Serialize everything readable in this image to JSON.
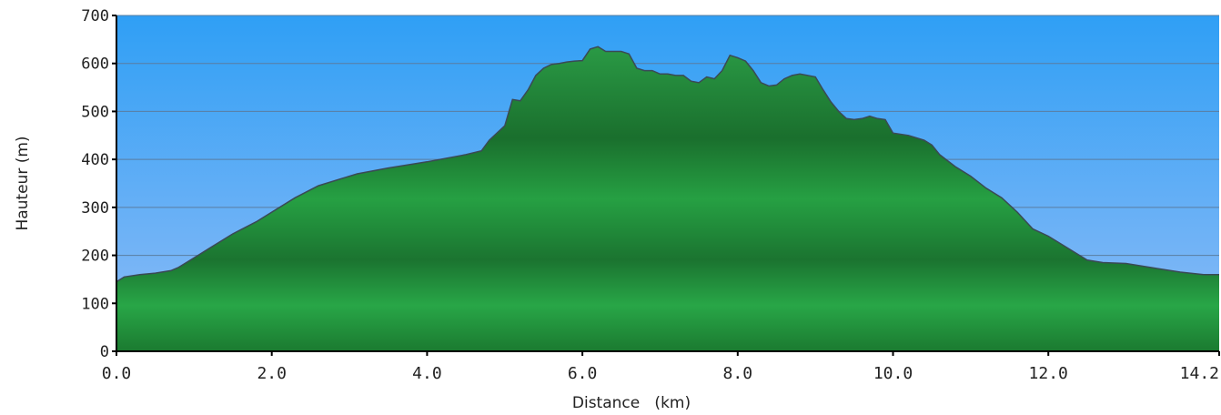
{
  "chart_data": {
    "type": "area",
    "title": "",
    "xlabel": "Distance   (km)",
    "ylabel": "Hauteur (m)",
    "xlim": [
      0,
      14.2
    ],
    "ylim": [
      0,
      700
    ],
    "x_ticks": [
      "0.0",
      "2.0",
      "4.0",
      "6.0",
      "8.0",
      "10.0",
      "12.0",
      "14.2"
    ],
    "x_tick_values": [
      0,
      2,
      4,
      6,
      8,
      10,
      12,
      14.2
    ],
    "y_ticks": [
      "0",
      "100",
      "200",
      "300",
      "400",
      "500",
      "600",
      "700"
    ],
    "y_tick_values": [
      0,
      100,
      200,
      300,
      400,
      500,
      600,
      700
    ],
    "grid": true,
    "legend": "none",
    "colors": {
      "sky_top": "#2f9ff5",
      "sky_bottom": "#8fbcf6",
      "fill_light": "#29a447",
      "fill_dark": "#1a6f2d",
      "outline": "#3a4a55",
      "grid": "#5a7da0",
      "axis": "#000000"
    },
    "series": [
      {
        "x": [
          0.0,
          0.1,
          0.3,
          0.5,
          0.7,
          0.8,
          1.0,
          1.2,
          1.5,
          1.8,
          2.0,
          2.3,
          2.6,
          2.9,
          3.0,
          3.1,
          3.5,
          4.0,
          4.5,
          4.7,
          4.8,
          4.9,
          5.0,
          5.1,
          5.2,
          5.3,
          5.4,
          5.5,
          5.6,
          5.7,
          5.8,
          5.9,
          6.0,
          6.1,
          6.2,
          6.3,
          6.4,
          6.5,
          6.6,
          6.7,
          6.8,
          6.9,
          7.0,
          7.1,
          7.2,
          7.3,
          7.4,
          7.5,
          7.6,
          7.7,
          7.8,
          7.9,
          8.0,
          8.1,
          8.2,
          8.3,
          8.4,
          8.5,
          8.6,
          8.7,
          8.8,
          8.9,
          9.0,
          9.1,
          9.2,
          9.3,
          9.4,
          9.5,
          9.6,
          9.7,
          9.8,
          9.9,
          10.0,
          10.2,
          10.4,
          10.5,
          10.6,
          10.8,
          11.0,
          11.2,
          11.4,
          11.6,
          11.8,
          12.0,
          12.2,
          12.5,
          12.7,
          13.0,
          13.2,
          13.5,
          13.7,
          14.0,
          14.2
        ],
        "y": [
          145,
          155,
          160,
          163,
          168,
          175,
          195,
          215,
          245,
          270,
          290,
          320,
          345,
          360,
          365,
          370,
          382,
          395,
          410,
          418,
          440,
          455,
          470,
          525,
          522,
          545,
          575,
          590,
          598,
          600,
          603,
          605,
          606,
          630,
          635,
          625,
          625,
          625,
          620,
          590,
          585,
          585,
          578,
          578,
          575,
          575,
          563,
          560,
          572,
          568,
          585,
          617,
          612,
          605,
          585,
          560,
          553,
          555,
          568,
          575,
          578,
          575,
          572,
          545,
          520,
          500,
          485,
          483,
          485,
          490,
          485,
          483,
          455,
          450,
          440,
          430,
          410,
          385,
          365,
          340,
          320,
          290,
          255,
          240,
          220,
          190,
          185,
          183,
          178,
          170,
          165,
          160,
          160
        ]
      }
    ]
  }
}
